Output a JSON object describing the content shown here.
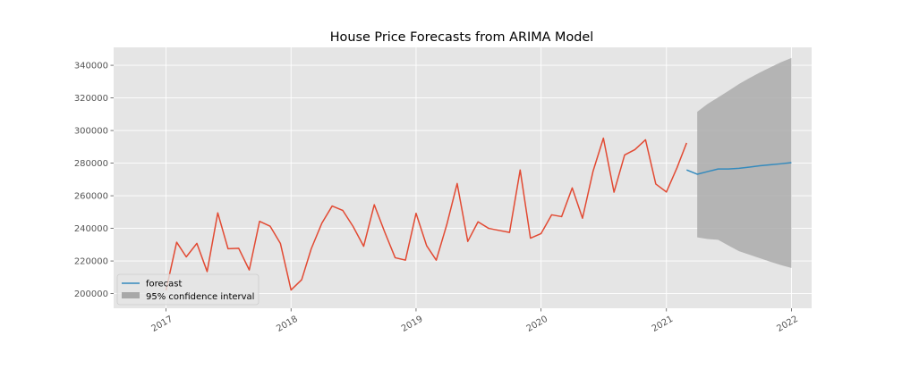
{
  "chart_data": {
    "type": "line",
    "title": "House Price Forecasts from ARIMA Model",
    "xlabel": "",
    "ylabel": "",
    "ylim": [
      191000,
      351000
    ],
    "xlim": [
      "2016-08-01",
      "2022-03-01"
    ],
    "yticks": [
      200000,
      220000,
      240000,
      260000,
      280000,
      300000,
      320000,
      340000
    ],
    "xticks": [
      {
        "date": "2017-01-01",
        "label": "2017"
      },
      {
        "date": "2018-01-01",
        "label": "2018"
      },
      {
        "date": "2019-01-01",
        "label": "2019"
      },
      {
        "date": "2020-01-01",
        "label": "2020"
      },
      {
        "date": "2021-01-01",
        "label": "2021"
      },
      {
        "date": "2022-01-01",
        "label": "2022"
      }
    ],
    "grid": true,
    "legend_placement": "lower-left",
    "colors": {
      "observed": "#e24a33",
      "forecast": "#348abd",
      "ci_fill": "#a8a8a8",
      "axes_bg": "#e5e5e5",
      "grid": "#ffffff"
    },
    "observed": {
      "x": [
        "2017-01-01",
        "2017-02-01",
        "2017-03-01",
        "2017-04-01",
        "2017-05-01",
        "2017-06-01",
        "2017-07-01",
        "2017-08-01",
        "2017-09-01",
        "2017-10-01",
        "2017-11-01",
        "2017-12-01",
        "2018-01-01",
        "2018-02-01",
        "2018-03-01",
        "2018-04-01",
        "2018-05-01",
        "2018-06-01",
        "2018-07-01",
        "2018-08-01",
        "2018-09-01",
        "2018-10-01",
        "2018-11-01",
        "2018-12-01",
        "2019-01-01",
        "2019-02-01",
        "2019-03-01",
        "2019-04-01",
        "2019-05-01",
        "2019-06-01",
        "2019-07-01",
        "2019-08-01",
        "2019-09-01",
        "2019-10-01",
        "2019-11-01",
        "2019-12-01",
        "2020-01-01",
        "2020-02-01",
        "2020-03-01",
        "2020-04-01",
        "2020-05-01",
        "2020-06-01",
        "2020-07-01",
        "2020-08-01",
        "2020-09-01",
        "2020-10-01",
        "2020-11-01",
        "2020-12-01",
        "2021-01-01",
        "2021-02-01",
        "2021-03-01"
      ],
      "y": [
        202000,
        231500,
        222500,
        230800,
        213500,
        249500,
        227500,
        227800,
        214500,
        244300,
        241300,
        230700,
        202200,
        208500,
        227500,
        243200,
        253700,
        251000,
        241200,
        229000,
        254500,
        238000,
        222000,
        220500,
        249200,
        229300,
        220500,
        242500,
        267500,
        232000,
        244000,
        240000,
        238700,
        237500,
        275800,
        234000,
        236800,
        248300,
        247200,
        264800,
        246200,
        275200,
        295300,
        262200,
        285000,
        288300,
        294300,
        267200,
        262300,
        277200,
        292400
      ]
    },
    "series": [
      {
        "name": "forecast",
        "x": [
          "2021-03-01",
          "2021-04-01",
          "2021-05-01",
          "2021-06-01",
          "2021-07-01",
          "2021-08-01",
          "2021-09-01",
          "2021-10-01",
          "2021-11-01",
          "2021-12-01",
          "2022-01-01"
        ],
        "y": [
          275800,
          273200,
          274800,
          276400,
          276400,
          276800,
          277600,
          278400,
          279000,
          279600,
          280300
        ]
      }
    ],
    "confidence_interval": {
      "name": "95% confidence interval",
      "x": [
        "2021-04-01",
        "2021-05-01",
        "2021-06-01",
        "2021-07-01",
        "2021-08-01",
        "2021-09-01",
        "2021-10-01",
        "2021-11-01",
        "2021-12-01",
        "2022-01-01"
      ],
      "lower": [
        234500,
        233500,
        233000,
        229500,
        226000,
        223800,
        221700,
        219500,
        217500,
        215700
      ],
      "upper": [
        311500,
        316300,
        320300,
        324300,
        328500,
        332200,
        335600,
        338800,
        341800,
        344500
      ]
    },
    "legend": [
      "forecast",
      "95% confidence interval"
    ]
  }
}
